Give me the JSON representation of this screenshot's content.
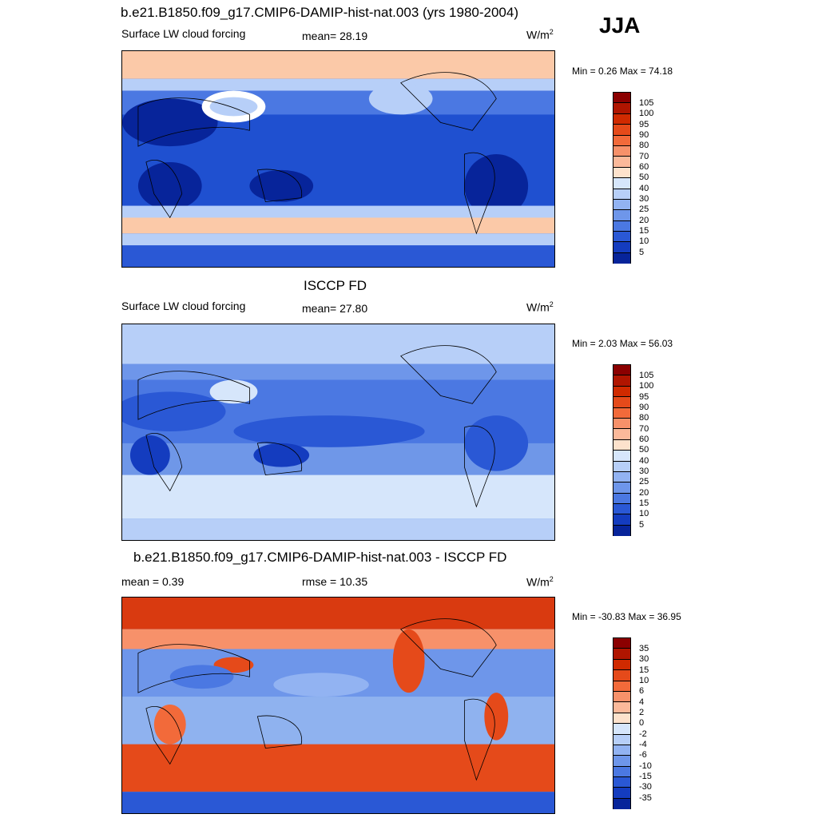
{
  "season": "JJA",
  "units_base": "W/m",
  "units_exp": "2",
  "panels": [
    {
      "title": "b.e21.B1850.f09_g17.CMIP6-DAMIP-hist-nat.003 (yrs 1980-2004)",
      "left_label": "Surface LW cloud forcing",
      "center_label": "mean=  28.19",
      "minmax": "Min =   0.26 Max =  74.18",
      "colorbar_labels": [
        "105",
        "100",
        "95",
        "90",
        "80",
        "70",
        "60",
        "50",
        "40",
        "30",
        "25",
        "20",
        "15",
        "10",
        "5"
      ],
      "bg_color": "#1f50d0"
    },
    {
      "title": "ISCCP FD",
      "left_label": "Surface LW cloud forcing",
      "center_label": "mean=  27.80",
      "minmax": "Min =   2.03 Max =  56.03",
      "colorbar_labels": [
        "105",
        "100",
        "95",
        "90",
        "80",
        "70",
        "60",
        "50",
        "40",
        "30",
        "25",
        "20",
        "15",
        "10",
        "5"
      ],
      "bg_color": "#6f97e8"
    },
    {
      "title": "b.e21.B1850.f09_g17.CMIP6-DAMIP-hist-nat.003 - ISCCP FD",
      "left_label": "mean =   0.39",
      "center_label": "rmse =  10.35",
      "minmax": "Min = -30.83 Max =  36.95",
      "colorbar_labels": [
        "35",
        "30",
        "15",
        "10",
        "6",
        "4",
        "2",
        "0",
        "-2",
        "-4",
        "-6",
        "-10",
        "-15",
        "-30",
        "-35"
      ],
      "bg_color": "#8fb2ef"
    }
  ],
  "colorbar_colors": [
    "#8b0000",
    "#b01500",
    "#d02a00",
    "#e54a1a",
    "#f26a3a",
    "#f7916a",
    "#fbb99a",
    "#fde2cc",
    "#d6e6fb",
    "#b7cff8",
    "#92b3f2",
    "#6e96ea",
    "#4b78e2",
    "#2a58d5",
    "#143cbf",
    "#07249a"
  ]
}
